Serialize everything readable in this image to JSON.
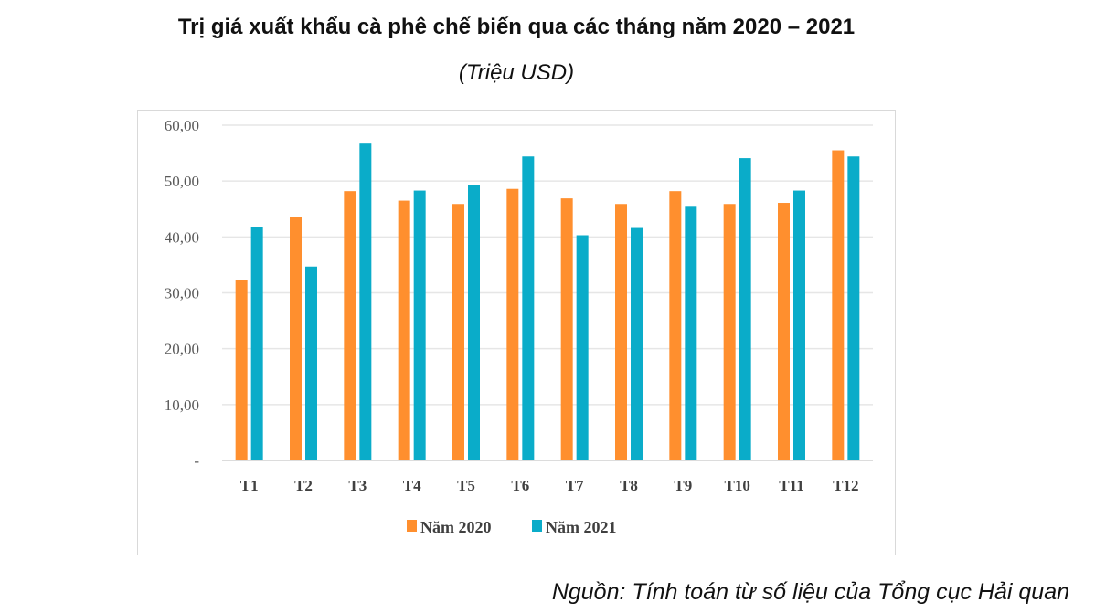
{
  "chart_data": {
    "type": "bar",
    "title": "Trị giá xuất khẩu cà phê chế biến qua các tháng năm 2020 – 2021",
    "subtitle": "(Triệu USD)",
    "xlabel": "",
    "ylabel": "",
    "ylim": [
      0,
      60
    ],
    "yticks": [
      "-",
      "10,00",
      "20,00",
      "30,00",
      "40,00",
      "50,00",
      "60,00"
    ],
    "categories": [
      "T1",
      "T2",
      "T3",
      "T4",
      "T5",
      "T6",
      "T7",
      "T8",
      "T9",
      "T10",
      "T11",
      "T12"
    ],
    "series": [
      {
        "name": "Năm 2020",
        "color": "#FF8F2E",
        "values": [
          32.3,
          43.6,
          48.2,
          46.5,
          45.9,
          48.6,
          46.9,
          45.9,
          48.2,
          45.9,
          46.1,
          55.5
        ]
      },
      {
        "name": "Năm 2021",
        "color": "#0AACC9",
        "values": [
          41.7,
          34.7,
          56.7,
          48.3,
          49.3,
          54.4,
          40.3,
          41.6,
          45.4,
          54.1,
          48.3,
          54.4
        ]
      }
    ],
    "grid": true,
    "legend": "bottom"
  },
  "source": "Nguồn: Tính toán từ số liệu của Tổng cục Hải quan"
}
